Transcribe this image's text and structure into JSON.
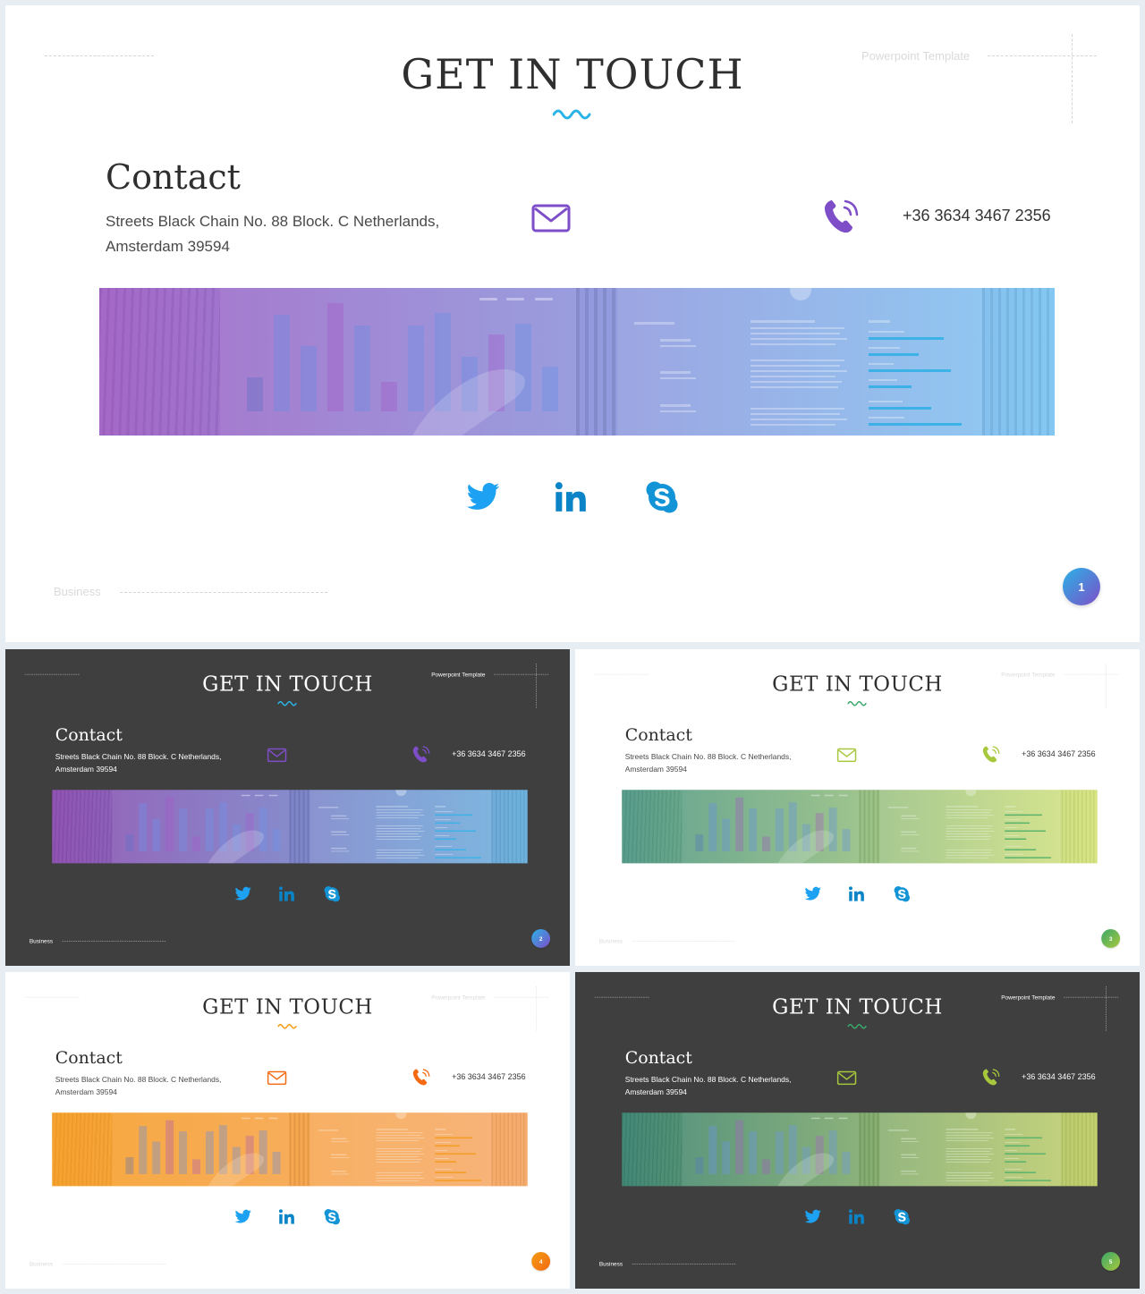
{
  "slide_text": {
    "title": "GET IN TOUCH",
    "header_label": "Powerpoint Template",
    "contact_heading": "Contact",
    "address": "Streets Black Chain No. 88 Block. C Netherlands, Amsterdam 39594",
    "phone": "+36 3634 3467 2356",
    "footer_label": "Business"
  },
  "icons": [
    "mail-icon",
    "phone-icon",
    "twitter-icon",
    "linkedin-icon",
    "skype-icon"
  ],
  "colors": {
    "social_blue": "#1da1f2",
    "linkedin_blue": "#0a84c6",
    "dark_bg": "#3f3f3f",
    "light_bg": "#ffffff"
  },
  "slides": [
    {
      "page": "1",
      "theme": "light",
      "accent_from": "#2ab3e6",
      "accent_to": "#7e4ec8",
      "banner_from": "rgba(150,80,190,0.85)",
      "banner_to": "rgba(110,190,240,0.85)"
    },
    {
      "page": "2",
      "theme": "dark",
      "accent_from": "#2ab3e6",
      "accent_to": "#7e4ec8",
      "banner_from": "rgba(150,80,190,0.85)",
      "banner_to": "rgba(110,190,240,0.85)"
    },
    {
      "page": "3",
      "theme": "light",
      "accent_from": "#3aa86a",
      "accent_to": "#a7c83c",
      "banner_from": "rgba(60,140,120,0.85)",
      "banner_to": "rgba(210,225,110,0.85)"
    },
    {
      "page": "4",
      "theme": "light",
      "accent_from": "#f39c12",
      "accent_to": "#f36a12",
      "banner_from": "rgba(245,150,20,0.88)",
      "banner_to": "rgba(245,160,90,0.88)"
    },
    {
      "page": "5",
      "theme": "dark",
      "accent_from": "#3aa86a",
      "accent_to": "#a7c83c",
      "banner_from": "rgba(60,140,120,0.85)",
      "banner_to": "rgba(210,225,110,0.85)"
    }
  ]
}
